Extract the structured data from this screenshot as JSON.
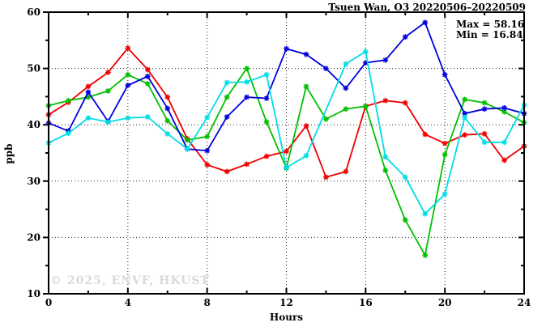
{
  "chart_data": {
    "type": "line",
    "title": "Tsuen Wan, O3 20220506–20220509",
    "xlabel": "Hours",
    "ylabel": "ppb",
    "xlim": [
      0,
      24
    ],
    "ylim": [
      10,
      60
    ],
    "x_major_ticks": [
      0,
      4,
      8,
      12,
      16,
      20,
      24
    ],
    "x_minor_ticks": [
      2,
      6,
      10,
      14,
      18,
      22
    ],
    "y_major_ticks": [
      10,
      20,
      30,
      40,
      50,
      60
    ],
    "y_minor_ticks": [
      15,
      25,
      35,
      45,
      55
    ],
    "x_tick_labels": [
      "0",
      "4",
      "8",
      "12",
      "16",
      "20",
      "24"
    ],
    "y_tick_labels": [
      "10",
      "20",
      "30",
      "40",
      "50",
      "60"
    ],
    "x_gridlines": [
      4,
      8,
      12,
      16,
      20
    ],
    "y_gridlines": [
      20,
      30,
      40,
      50
    ],
    "grid_style": "dotted",
    "legend": "none",
    "marker": "star",
    "x": [
      0,
      1,
      2,
      3,
      4,
      5,
      6,
      7,
      8,
      9,
      10,
      11,
      12,
      13,
      14,
      15,
      16,
      17,
      18,
      19,
      20,
      21,
      22,
      23,
      24
    ],
    "series": [
      {
        "name": "red-line-day1",
        "color": "#ee0000",
        "values": [
          41.8,
          44.0,
          46.8,
          49.3,
          53.6,
          49.8,
          44.9,
          37.5,
          32.9,
          31.7,
          33.0,
          34.4,
          35.3,
          39.8,
          30.7,
          31.7,
          43.3,
          44.3,
          43.9,
          38.3,
          36.7,
          38.2,
          38.4,
          33.7,
          36.2
        ]
      },
      {
        "name": "green-line-day2",
        "color": "#00c000",
        "values": [
          43.4,
          44.3,
          44.9,
          46.0,
          48.9,
          47.3,
          40.7,
          37.3,
          37.9,
          44.9,
          50.0,
          40.5,
          32.3,
          46.8,
          41.0,
          42.8,
          43.3,
          31.9,
          23.1,
          16.84,
          34.7,
          44.5,
          43.9,
          42.3,
          40.4
        ]
      },
      {
        "name": "blue-line-day3",
        "color": "#0000dd",
        "values": [
          40.3,
          38.9,
          45.8,
          40.6,
          47.0,
          48.6,
          42.9,
          35.7,
          35.4,
          41.4,
          44.9,
          44.7,
          53.5,
          52.5,
          50.0,
          46.5,
          51.0,
          51.5,
          55.6,
          58.16,
          48.9,
          42.0,
          42.8,
          43.0,
          42.0
        ]
      },
      {
        "name": "cyan-line-day4",
        "color": "#00dde6",
        "values": [
          36.8,
          38.5,
          41.2,
          40.5,
          41.2,
          41.4,
          38.4,
          35.7,
          41.3,
          47.5,
          47.6,
          48.9,
          32.4,
          34.5,
          null,
          50.8,
          53.0,
          34.3,
          30.7,
          24.2,
          27.7,
          41.3,
          36.9,
          36.9,
          43.5
        ]
      }
    ],
    "annotations": {
      "max_label": "Max = 58.16",
      "min_label": "Min = 16.84",
      "max_value": 58.16,
      "min_value": 16.84
    },
    "watermark": "© 2025, ENVF, HKUST"
  }
}
